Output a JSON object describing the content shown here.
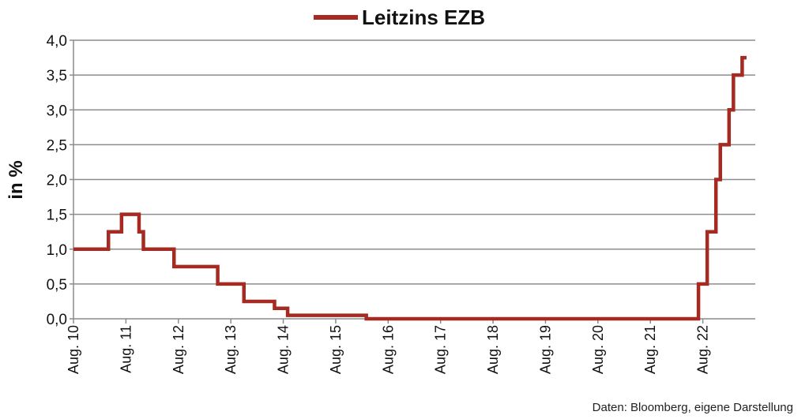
{
  "chart_data": {
    "type": "line",
    "step": true,
    "title": "Leitzins EZB",
    "ylabel": "in %",
    "xlabel": "",
    "ylim": [
      0,
      4
    ],
    "yticks": [
      "0,0",
      "0,5",
      "1,0",
      "1,5",
      "2,0",
      "2,5",
      "3,0",
      "3,5",
      "4,0"
    ],
    "ytick_values": [
      0,
      0.5,
      1,
      1.5,
      2,
      2.5,
      3,
      3.5,
      4
    ],
    "xticks": [
      "Aug. 10",
      "Aug. 11",
      "Aug. 12",
      "Aug. 13",
      "Aug. 14",
      "Aug. 15",
      "Aug. 16",
      "Aug. 17",
      "Aug. 18",
      "Aug. 19",
      "Aug. 20",
      "Aug. 21",
      "Aug. 22"
    ],
    "grid": "horizontal",
    "legend": "top",
    "series": [
      {
        "name": "Leitzins EZB",
        "color": "#a52a22",
        "x": [
          "2010-08",
          "2011-04",
          "2011-07",
          "2011-11",
          "2011-12",
          "2012-07",
          "2013-05",
          "2013-11",
          "2014-06",
          "2014-09",
          "2016-03",
          "2022-07",
          "2022-09",
          "2022-11",
          "2022-12",
          "2023-02",
          "2023-03",
          "2023-05",
          "2023-06"
        ],
        "values": [
          1.0,
          1.25,
          1.5,
          1.25,
          1.0,
          0.75,
          0.5,
          0.25,
          0.15,
          0.05,
          0.0,
          0.5,
          1.25,
          2.0,
          2.5,
          3.0,
          3.5,
          3.75,
          3.75
        ]
      }
    ]
  },
  "source_note": "Daten: Bloomberg, eigene Darstellung"
}
